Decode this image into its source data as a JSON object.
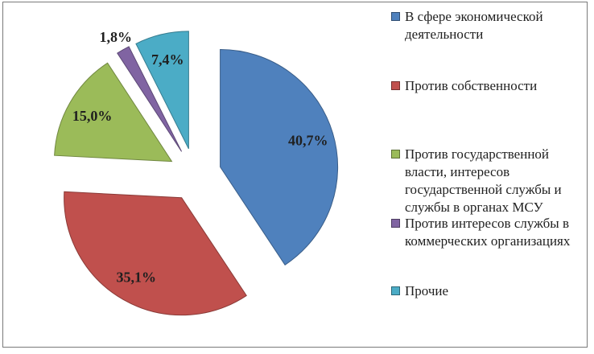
{
  "chart_data": {
    "type": "pie",
    "title": "",
    "exploded": true,
    "start_angle_deg": 0,
    "direction": "clockwise",
    "legend_position": "right",
    "decimal_separator": ",",
    "text_color": "#1f1f1f",
    "frame_color": "#7a7a7a",
    "slices": [
      {
        "label": "В сфере экономической деятельности",
        "value": 40.7,
        "display": "40,7%",
        "color": "#4F81BD"
      },
      {
        "label": "Против собственности",
        "value": 35.1,
        "display": "35,1%",
        "color": "#C0504D"
      },
      {
        "label": "Против государственной власти, интересов государственной службы и службы в органах МСУ",
        "value": 15.0,
        "display": "15,0%",
        "color": "#9BBB59"
      },
      {
        "label": "Против интересов службы в коммерческих организациях",
        "value": 1.8,
        "display": "1,8%",
        "color": "#8064A2"
      },
      {
        "label": "Прочие",
        "value": 7.4,
        "display": "7,4%",
        "color": "#4BACC6"
      }
    ]
  }
}
